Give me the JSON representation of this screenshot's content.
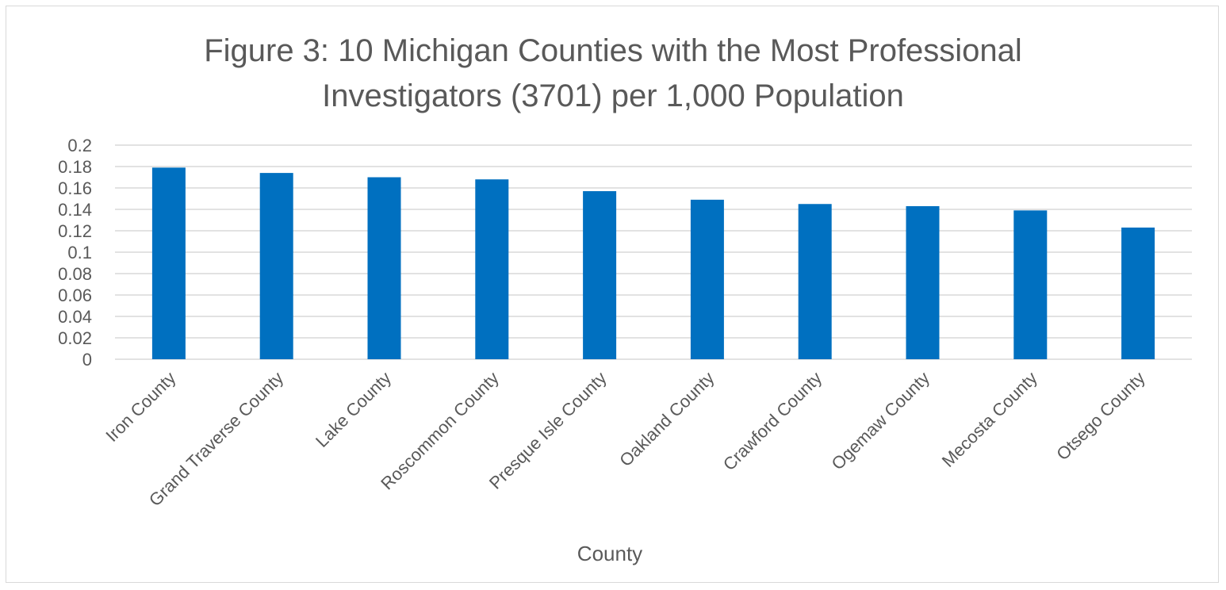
{
  "chart_data": {
    "type": "bar",
    "title_lines": [
      "Figure 3: 10 Michigan Counties with the Most Professional",
      "Investigators (3701) per 1,000 Population"
    ],
    "xlabel": "County",
    "ylabel": "",
    "categories": [
      "Iron County",
      "Grand Traverse County",
      "Lake County",
      "Roscommon County",
      "Presque Isle County",
      "Oakland County",
      "Crawford County",
      "Ogemaw County",
      "Mecosta County",
      "Otsego County"
    ],
    "values": [
      0.179,
      0.174,
      0.17,
      0.168,
      0.157,
      0.149,
      0.145,
      0.143,
      0.139,
      0.123
    ],
    "ylim": [
      0,
      0.2
    ],
    "yticks": [
      "0",
      "0.02",
      "0.04",
      "0.06",
      "0.08",
      "0.1",
      "0.12",
      "0.14",
      "0.16",
      "0.18",
      "0.2"
    ],
    "grid": true,
    "legend": "none",
    "bar_color": "#0070c0",
    "grid_color": "#d9d9d9"
  }
}
